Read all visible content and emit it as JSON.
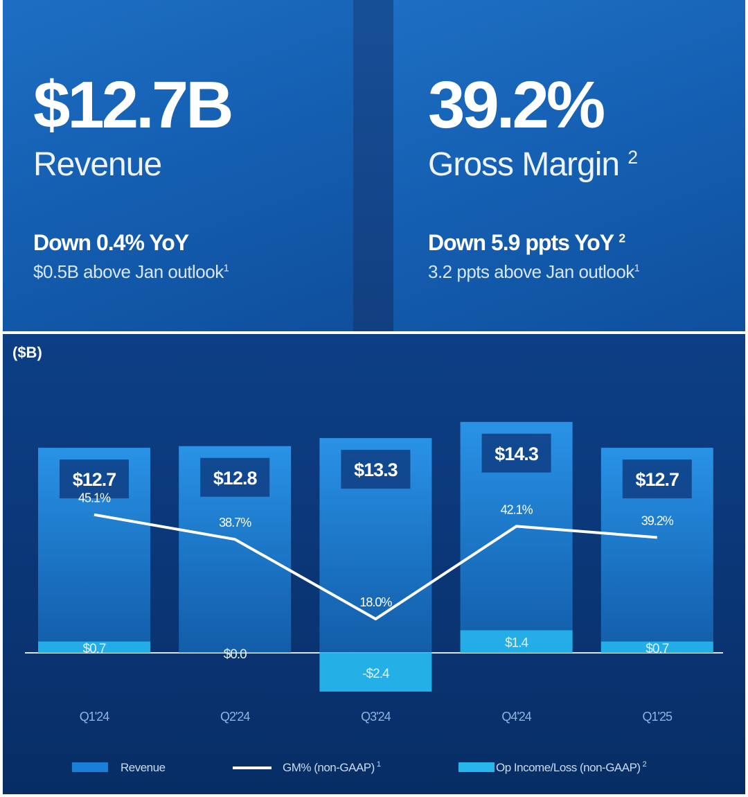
{
  "kpis": [
    {
      "value": "$12.7B",
      "label": "Revenue",
      "label_sup": "",
      "line1": "Down 0.4% YoY",
      "line1_sup": "",
      "line2": "$0.5B above Jan outlook",
      "line2_sup": "1"
    },
    {
      "value": "39.2%",
      "label": "Gross Margin",
      "label_sup": "2",
      "line1": "Down 5.9 ppts YoY",
      "line1_sup": "2",
      "line2": "3.2 ppts above Jan outlook",
      "line2_sup": "1"
    }
  ],
  "colors": {
    "revenue_bar": "#1a7fd6",
    "revenue_bar_top": "#2a93e6",
    "op_income": "#26b6ec",
    "gm_line": "#ffffff",
    "value_box": "#0e3d82"
  },
  "chart_data": {
    "type": "bar",
    "title": "",
    "unit_label": "($B)",
    "categories": [
      "Q1'24",
      "Q2'24",
      "Q3'24",
      "Q4'24",
      "Q1'25"
    ],
    "series": [
      {
        "name": "Revenue",
        "type": "bar",
        "values": [
          12.7,
          12.8,
          13.3,
          14.3,
          12.7
        ],
        "labels": [
          "$12.7",
          "$12.8",
          "$13.3",
          "$14.3",
          "$12.7"
        ]
      },
      {
        "name": "GM% (non-GAAP)",
        "name_sup": "1",
        "type": "line",
        "values": [
          45.1,
          38.7,
          18.0,
          42.1,
          39.2
        ],
        "labels": [
          "45.1%",
          "38.7%",
          "18.0%",
          "42.1%",
          "39.2%"
        ]
      },
      {
        "name": "Op Income/Loss (non-GAAP)",
        "name_sup": "2",
        "type": "bar",
        "values": [
          0.7,
          0.0,
          -2.4,
          1.4,
          0.7
        ],
        "labels": [
          "$0.7",
          "$0.0",
          "-$2.4",
          "$1.4",
          "$0.7"
        ]
      }
    ],
    "ylim": [
      -2.4,
      14.3
    ],
    "gm_ylim": [
      0,
      100
    ],
    "legend_position": "bottom"
  }
}
